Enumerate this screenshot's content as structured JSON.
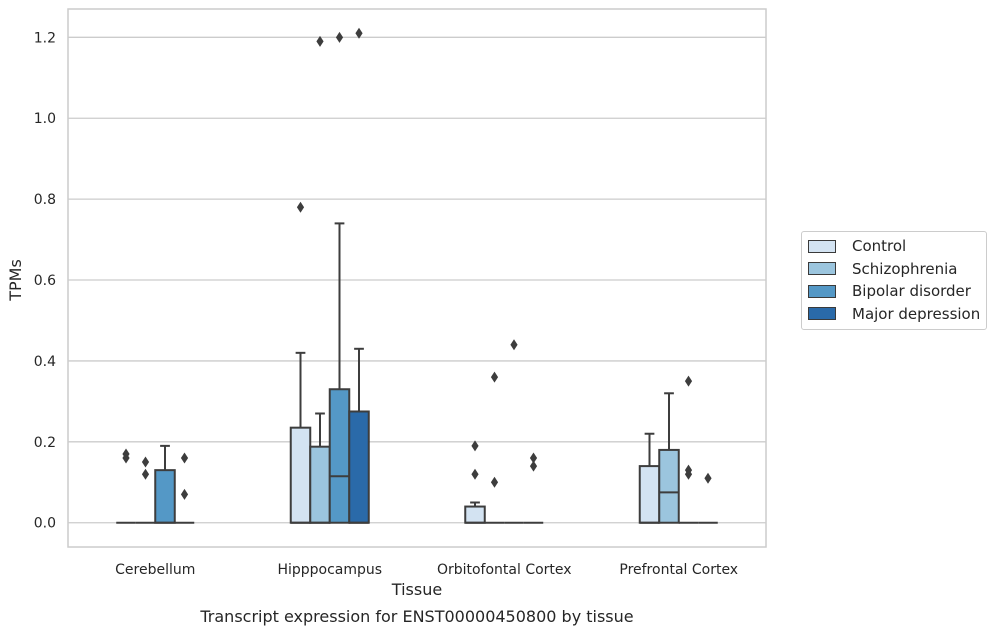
{
  "chart_data": {
    "type": "box",
    "title": "",
    "xlabel": "Tissue",
    "ylabel": "TPMs",
    "caption": "Transcript expression for ENST00000450800 by tissue",
    "categories": [
      "Cerebellum",
      "Hipppocampus",
      "Orbitofontal Cortex",
      "Prefrontal Cortex"
    ],
    "ylim": [
      -0.06,
      1.27
    ],
    "yticks": [
      "0.0",
      "0.2",
      "0.4",
      "0.6",
      "0.8",
      "1.0",
      "1.2"
    ],
    "grid": true,
    "legend_position": "right",
    "series": [
      {
        "name": "Control",
        "color": "#d3e3f2",
        "boxes": [
          {
            "q1": 0.0,
            "median": 0.0,
            "q3": 0.0,
            "whisker_low": 0.0,
            "whisker_high": 0.0,
            "outliers": [
              0.16,
              0.17
            ]
          },
          {
            "q1": 0.0,
            "median": 0.0,
            "q3": 0.235,
            "whisker_low": 0.0,
            "whisker_high": 0.42,
            "outliers": [
              0.78
            ]
          },
          {
            "q1": 0.0,
            "median": 0.0,
            "q3": 0.04,
            "whisker_low": 0.0,
            "whisker_high": 0.05,
            "outliers": [
              0.12,
              0.19
            ]
          },
          {
            "q1": 0.0,
            "median": 0.0,
            "q3": 0.14,
            "whisker_low": 0.0,
            "whisker_high": 0.22,
            "outliers": []
          }
        ]
      },
      {
        "name": "Schizophrenia",
        "color": "#9bc5de",
        "boxes": [
          {
            "q1": 0.0,
            "median": 0.0,
            "q3": 0.0,
            "whisker_low": 0.0,
            "whisker_high": 0.0,
            "outliers": [
              0.12,
              0.15
            ]
          },
          {
            "q1": 0.0,
            "median": 0.0,
            "q3": 0.188,
            "whisker_low": 0.0,
            "whisker_high": 0.27,
            "outliers": [
              1.19
            ]
          },
          {
            "q1": 0.0,
            "median": 0.0,
            "q3": 0.0,
            "whisker_low": 0.0,
            "whisker_high": 0.0,
            "outliers": [
              0.1,
              0.36
            ]
          },
          {
            "q1": 0.0,
            "median": 0.075,
            "q3": 0.18,
            "whisker_low": 0.0,
            "whisker_high": 0.32,
            "outliers": []
          }
        ]
      },
      {
        "name": "Bipolar disorder",
        "color": "#5498c6",
        "boxes": [
          {
            "q1": 0.0,
            "median": 0.0,
            "q3": 0.13,
            "whisker_low": 0.0,
            "whisker_high": 0.19,
            "outliers": []
          },
          {
            "q1": 0.0,
            "median": 0.115,
            "q3": 0.33,
            "whisker_low": 0.0,
            "whisker_high": 0.74,
            "outliers": [
              1.2
            ]
          },
          {
            "q1": 0.0,
            "median": 0.0,
            "q3": 0.0,
            "whisker_low": 0.0,
            "whisker_high": 0.0,
            "outliers": [
              0.44
            ]
          },
          {
            "q1": 0.0,
            "median": 0.0,
            "q3": 0.0,
            "whisker_low": 0.0,
            "whisker_high": 0.0,
            "outliers": [
              0.12,
              0.13,
              0.35
            ]
          }
        ]
      },
      {
        "name": "Major depression",
        "color": "#2a6aa9",
        "boxes": [
          {
            "q1": 0.0,
            "median": 0.0,
            "q3": 0.0,
            "whisker_low": 0.0,
            "whisker_high": 0.0,
            "outliers": [
              0.07,
              0.16
            ]
          },
          {
            "q1": 0.0,
            "median": 0.0,
            "q3": 0.275,
            "whisker_low": 0.0,
            "whisker_high": 0.43,
            "outliers": [
              1.21
            ]
          },
          {
            "q1": 0.0,
            "median": 0.0,
            "q3": 0.0,
            "whisker_low": 0.0,
            "whisker_high": 0.0,
            "outliers": [
              0.14,
              0.16
            ]
          },
          {
            "q1": 0.0,
            "median": 0.0,
            "q3": 0.0,
            "whisker_low": 0.0,
            "whisker_high": 0.0,
            "outliers": [
              0.11
            ]
          }
        ]
      }
    ]
  }
}
